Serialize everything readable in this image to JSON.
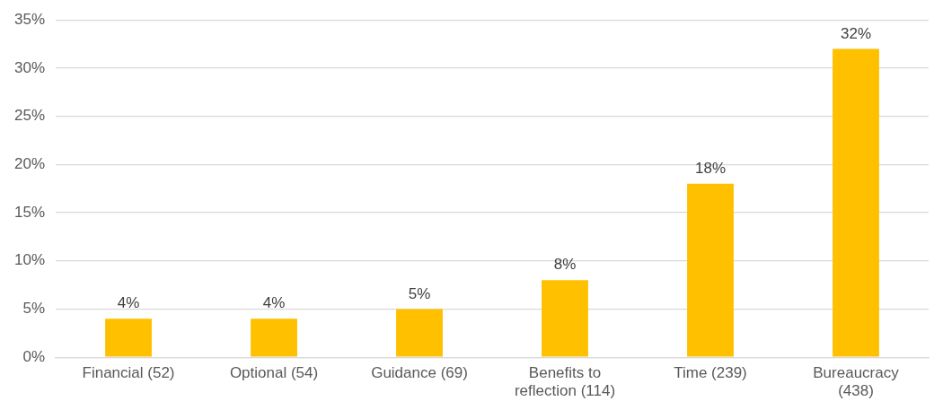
{
  "chart_data": {
    "type": "bar",
    "categories": [
      "Financial (52)",
      "Optional (54)",
      "Guidance (69)",
      "Benefits to reflection (114)",
      "Time (239)",
      "Bureaucracy (438)"
    ],
    "values": [
      4,
      4,
      5,
      8,
      18,
      32
    ],
    "value_labels": [
      "4%",
      "4%",
      "5%",
      "8%",
      "18%",
      "32%"
    ],
    "color": "#ffc000",
    "ylim": [
      0,
      35
    ],
    "yticks": [
      {
        "value": 0,
        "label": "0%"
      },
      {
        "value": 5,
        "label": "5%"
      },
      {
        "value": 10,
        "label": "10%"
      },
      {
        "value": 15,
        "label": "15%"
      },
      {
        "value": 20,
        "label": "20%"
      },
      {
        "value": 25,
        "label": "25%"
      },
      {
        "value": 30,
        "label": "30%"
      },
      {
        "value": 35,
        "label": "35%"
      }
    ],
    "grid": "y",
    "legend": false
  }
}
